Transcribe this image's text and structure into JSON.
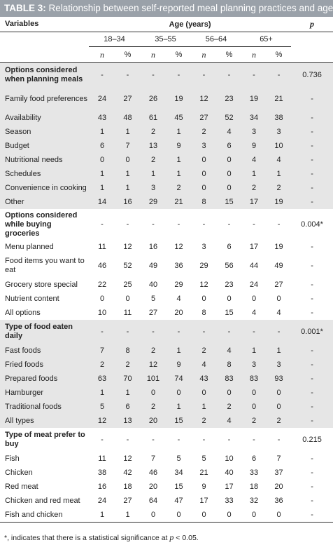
{
  "caption": {
    "label": "TABLE 3:",
    "text": " Relationship between self-reported meal planning practices and age."
  },
  "header": {
    "variables": "Variables",
    "age_years": "Age (years)",
    "p": "p",
    "groups": [
      "18–34",
      "35–55",
      "56–64",
      "65+"
    ],
    "n": "n",
    "percent": "%"
  },
  "rows": [
    {
      "label": "Options considered when planning meals",
      "type": "section",
      "shade": true,
      "h": "tall2",
      "vals": [
        "-",
        "-",
        "-",
        "-",
        "-",
        "-",
        "-",
        "-"
      ],
      "p": "0.736"
    },
    {
      "label": "Family food preferences",
      "type": "item",
      "shade": true,
      "h": "tall",
      "vals": [
        "24",
        "27",
        "26",
        "19",
        "12",
        "23",
        "19",
        "21"
      ],
      "p": "-"
    },
    {
      "label": "Availability",
      "type": "item",
      "shade": true,
      "vals": [
        "43",
        "48",
        "61",
        "45",
        "27",
        "52",
        "34",
        "38"
      ],
      "p": "-"
    },
    {
      "label": "Season",
      "type": "item",
      "shade": true,
      "vals": [
        "1",
        "1",
        "2",
        "1",
        "2",
        "4",
        "3",
        "3"
      ],
      "p": "-"
    },
    {
      "label": "Budget",
      "type": "item",
      "shade": true,
      "vals": [
        "6",
        "7",
        "13",
        "9",
        "3",
        "6",
        "9",
        "10"
      ],
      "p": "-"
    },
    {
      "label": "Nutritional needs",
      "type": "item",
      "shade": true,
      "vals": [
        "0",
        "0",
        "2",
        "1",
        "0",
        "0",
        "4",
        "4"
      ],
      "p": "-"
    },
    {
      "label": "Schedules",
      "type": "item",
      "shade": true,
      "vals": [
        "1",
        "1",
        "1",
        "1",
        "0",
        "0",
        "1",
        "1"
      ],
      "p": "-"
    },
    {
      "label": "Convenience in cooking",
      "type": "item",
      "shade": true,
      "vals": [
        "1",
        "1",
        "3",
        "2",
        "0",
        "0",
        "2",
        "2"
      ],
      "p": "-"
    },
    {
      "label": "Other",
      "type": "item",
      "shade": true,
      "vals": [
        "14",
        "16",
        "29",
        "21",
        "8",
        "15",
        "17",
        "19"
      ],
      "p": "-"
    },
    {
      "label": "Options considered while buying groceries",
      "type": "section",
      "shade": false,
      "h": "tall3",
      "vals": [
        "-",
        "-",
        "-",
        "-",
        "-",
        "-",
        "-",
        "-"
      ],
      "p": "0.004*"
    },
    {
      "label": "Menu planned",
      "type": "item",
      "shade": false,
      "vals": [
        "11",
        "12",
        "16",
        "12",
        "3",
        "6",
        "17",
        "19"
      ],
      "p": "-"
    },
    {
      "label": "Food items you want to eat",
      "type": "item",
      "shade": false,
      "h": "tall",
      "vals": [
        "46",
        "52",
        "49",
        "36",
        "29",
        "56",
        "44",
        "49"
      ],
      "p": "-"
    },
    {
      "label": "Grocery store special",
      "type": "item",
      "shade": false,
      "vals": [
        "22",
        "25",
        "40",
        "29",
        "12",
        "23",
        "24",
        "27"
      ],
      "p": "-"
    },
    {
      "label": "Nutrient content",
      "type": "item",
      "shade": false,
      "vals": [
        "0",
        "0",
        "5",
        "4",
        "0",
        "0",
        "0",
        "0"
      ],
      "p": "-"
    },
    {
      "label": "All options",
      "type": "item",
      "shade": false,
      "vals": [
        "10",
        "11",
        "27",
        "20",
        "8",
        "15",
        "4",
        "4"
      ],
      "p": "-"
    },
    {
      "label": "Type of food eaten daily",
      "type": "section",
      "shade": true,
      "h": "tall2",
      "vals": [
        "-",
        "-",
        "-",
        "-",
        "-",
        "-",
        "-",
        "-"
      ],
      "p": "0.001*"
    },
    {
      "label": "Fast foods",
      "type": "item",
      "shade": true,
      "vals": [
        "7",
        "8",
        "2",
        "1",
        "2",
        "4",
        "1",
        "1"
      ],
      "p": "-"
    },
    {
      "label": "Fried foods",
      "type": "item",
      "shade": true,
      "vals": [
        "2",
        "2",
        "12",
        "9",
        "4",
        "8",
        "3",
        "3"
      ],
      "p": "-"
    },
    {
      "label": "Prepared foods",
      "type": "item",
      "shade": true,
      "vals": [
        "63",
        "70",
        "101",
        "74",
        "43",
        "83",
        "83",
        "93"
      ],
      "p": "-"
    },
    {
      "label": "Hamburger",
      "type": "item",
      "shade": true,
      "vals": [
        "1",
        "1",
        "0",
        "0",
        "0",
        "0",
        "0",
        "0"
      ],
      "p": "-"
    },
    {
      "label": "Traditional foods",
      "type": "item",
      "shade": true,
      "vals": [
        "5",
        "6",
        "2",
        "1",
        "1",
        "2",
        "0",
        "0"
      ],
      "p": "-"
    },
    {
      "label": "All types",
      "type": "item",
      "shade": true,
      "vals": [
        "12",
        "13",
        "20",
        "15",
        "2",
        "4",
        "2",
        "2"
      ],
      "p": "-"
    },
    {
      "label": "Type of meat prefer to buy",
      "type": "section",
      "shade": false,
      "h": "tall2",
      "vals": [
        "-",
        "-",
        "-",
        "-",
        "-",
        "-",
        "-",
        "-"
      ],
      "p": "0.215"
    },
    {
      "label": "Fish",
      "type": "item",
      "shade": false,
      "vals": [
        "11",
        "12",
        "7",
        "5",
        "5",
        "10",
        "6",
        "7"
      ],
      "p": "-"
    },
    {
      "label": "Chicken",
      "type": "item",
      "shade": false,
      "vals": [
        "38",
        "42",
        "46",
        "34",
        "21",
        "40",
        "33",
        "37"
      ],
      "p": "-"
    },
    {
      "label": "Red meat",
      "type": "item",
      "shade": false,
      "vals": [
        "16",
        "18",
        "20",
        "15",
        "9",
        "17",
        "18",
        "20"
      ],
      "p": "-"
    },
    {
      "label": "Chicken and red meat",
      "type": "item",
      "shade": false,
      "vals": [
        "24",
        "27",
        "64",
        "47",
        "17",
        "33",
        "32",
        "36"
      ],
      "p": "-"
    },
    {
      "label": "Fish and chicken",
      "type": "item",
      "shade": false,
      "vals": [
        "1",
        "1",
        "0",
        "0",
        "0",
        "0",
        "0",
        "0"
      ],
      "p": "-"
    }
  ],
  "footnote": {
    "prefix": "*, indicates that there is a statistical significance at ",
    "p": "p",
    "suffix": " < 0.05."
  }
}
